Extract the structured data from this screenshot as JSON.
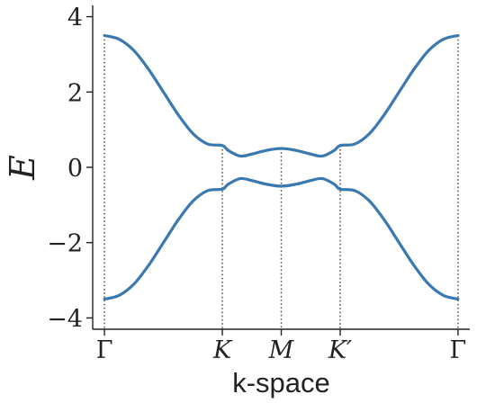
{
  "chart_data": {
    "type": "line",
    "title": "",
    "xlabel": "k-space",
    "ylabel": "E",
    "ylim": [
      -4.3,
      4.3
    ],
    "yticks": [
      -4,
      -2,
      0,
      2,
      4
    ],
    "ytick_labels": [
      "−4",
      "−2",
      "0",
      "2",
      "4"
    ],
    "high_symmetry_points": [
      {
        "label": "Γ",
        "x": 0.0
      },
      {
        "label": "K",
        "x": 2.0
      },
      {
        "label": "M",
        "x": 3.0
      },
      {
        "label": "K′",
        "x": 4.0
      },
      {
        "label": "Γ",
        "x": 6.0
      }
    ],
    "xlim": [
      -0.2,
      6.2
    ],
    "grid": false,
    "line_color": "#3a78b0",
    "series": [
      {
        "x": [
          0,
          0.25,
          0.5,
          0.75,
          1.0,
          1.25,
          1.5,
          1.75,
          2.0,
          2.1,
          2.3,
          2.5,
          2.75,
          3.0,
          3.25,
          3.5,
          3.7,
          3.9,
          4.0,
          4.25,
          4.5,
          4.75,
          5.0,
          5.25,
          5.5,
          5.75,
          6.0
        ],
        "values": [
          3.5,
          3.4,
          3.1,
          2.6,
          2.0,
          1.4,
          0.9,
          0.62,
          0.58,
          0.45,
          0.3,
          0.35,
          0.45,
          0.5,
          0.45,
          0.35,
          0.3,
          0.45,
          0.58,
          0.62,
          0.9,
          1.4,
          2.0,
          2.6,
          3.1,
          3.4,
          3.5
        ]
      },
      {
        "x": [
          0,
          0.25,
          0.5,
          0.75,
          1.0,
          1.25,
          1.5,
          1.75,
          2.0,
          2.1,
          2.3,
          2.5,
          2.75,
          3.0,
          3.25,
          3.5,
          3.7,
          3.9,
          4.0,
          4.25,
          4.5,
          4.75,
          5.0,
          5.25,
          5.5,
          5.75,
          6.0
        ],
        "values": [
          -3.5,
          -3.4,
          -3.1,
          -2.6,
          -2.0,
          -1.4,
          -0.9,
          -0.62,
          -0.58,
          -0.45,
          -0.3,
          -0.35,
          -0.45,
          -0.5,
          -0.45,
          -0.35,
          -0.3,
          -0.45,
          -0.58,
          -0.62,
          -0.9,
          -1.4,
          -2.0,
          -2.6,
          -3.1,
          -3.4,
          -3.5
        ]
      }
    ]
  }
}
